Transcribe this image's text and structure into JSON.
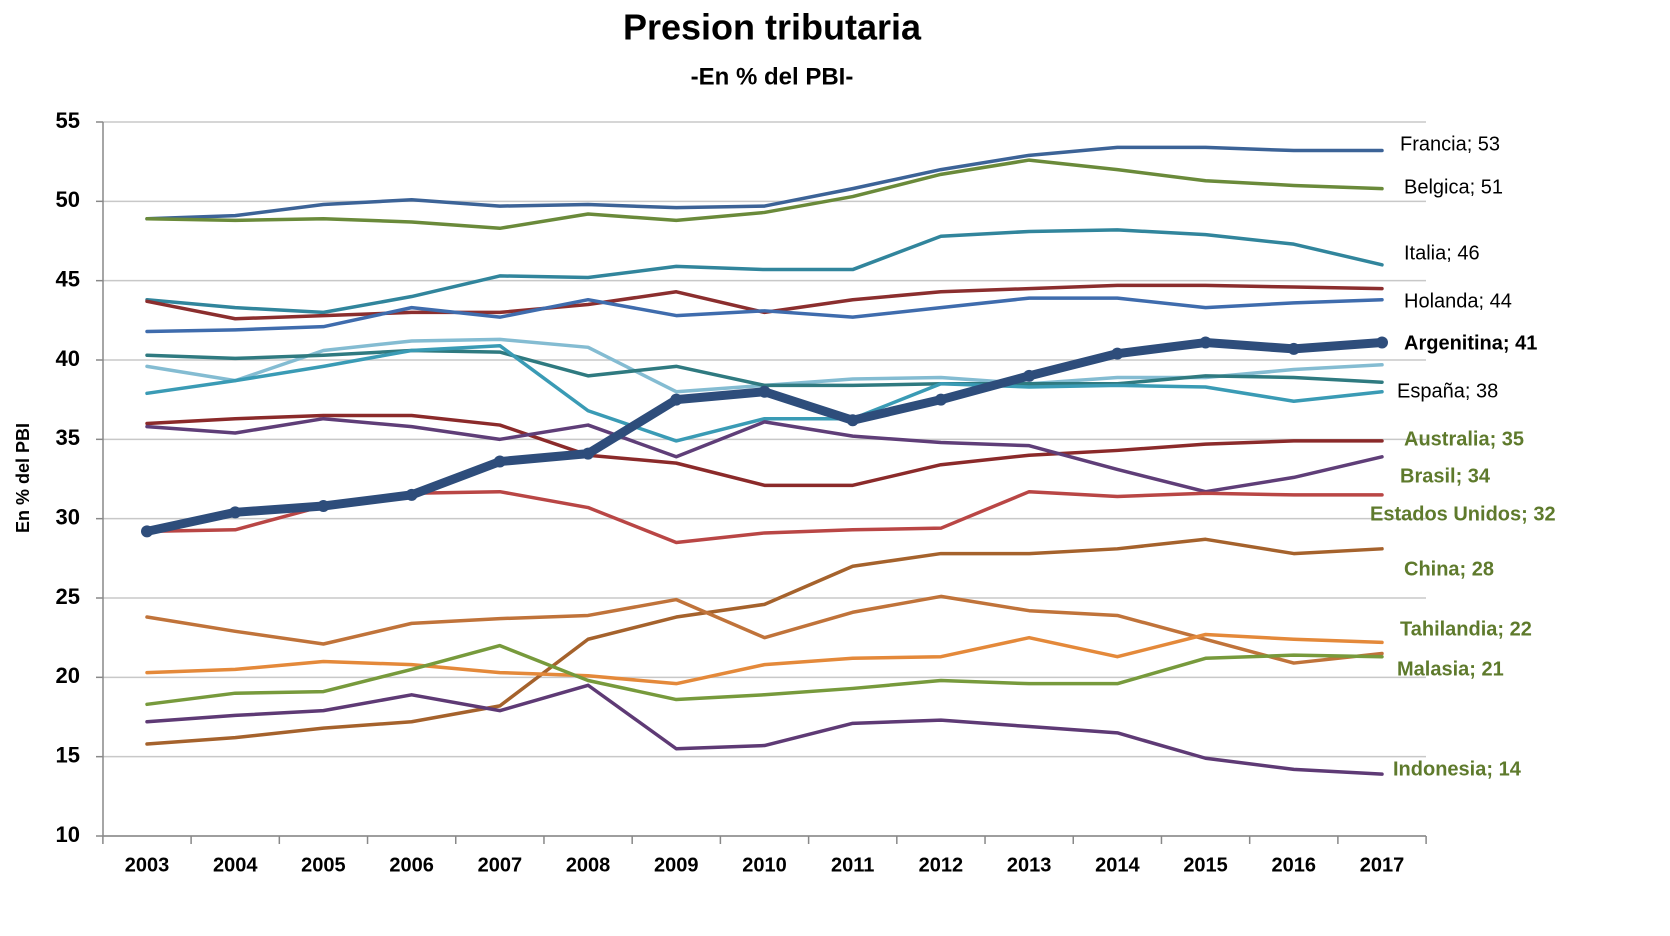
{
  "chart_data": {
    "type": "line",
    "title": "Presion tributaria",
    "subtitle": "-En % del PBI-",
    "y_label": "En % del PBI",
    "categories": [
      "2003",
      "2004",
      "2005",
      "2006",
      "2007",
      "2008",
      "2009",
      "2010",
      "2011",
      "2012",
      "2013",
      "2014",
      "2015",
      "2016",
      "2017"
    ],
    "ylim": [
      10,
      55
    ],
    "yticks": [
      10,
      15,
      20,
      25,
      30,
      35,
      40,
      45,
      50,
      55
    ],
    "grid": true,
    "series": [
      {
        "label": "Francia; 53",
        "color": "#3c6397",
        "label_color": "#000000",
        "values": [
          48.9,
          49.1,
          49.8,
          50.1,
          49.7,
          49.8,
          49.6,
          49.7,
          50.8,
          52.0,
          52.9,
          53.4,
          53.4,
          53.2,
          53.2
        ]
      },
      {
        "label": "Belgica; 51",
        "color": "#6a8a3a",
        "label_color": "#000000",
        "values": [
          48.9,
          48.8,
          48.9,
          48.7,
          48.3,
          49.2,
          48.8,
          49.3,
          50.3,
          51.7,
          52.6,
          52.0,
          51.3,
          51.0,
          50.8
        ]
      },
      {
        "label": "Italia; 46",
        "color": "#31859c",
        "label_color": "#000000",
        "values": [
          43.8,
          43.3,
          43.0,
          44.0,
          45.3,
          45.2,
          45.9,
          45.7,
          45.7,
          47.8,
          48.1,
          48.2,
          47.9,
          47.3,
          46.0
        ]
      },
      {
        "color": "#8b2e2e",
        "values": [
          43.7,
          42.6,
          42.8,
          43.0,
          43.0,
          43.5,
          44.3,
          43.0,
          43.8,
          44.3,
          44.5,
          44.7,
          44.7,
          44.6,
          44.5
        ]
      },
      {
        "label": "Holanda; 44",
        "color": "#3f6cad",
        "label_color": "#000000",
        "values": [
          41.8,
          41.9,
          42.1,
          43.3,
          42.7,
          43.8,
          42.8,
          43.1,
          42.7,
          43.3,
          43.9,
          43.9,
          43.3,
          43.6,
          43.8
        ]
      },
      {
        "label": "Argenitina; 41",
        "color": "#2e4d7b",
        "label_color": "#000000",
        "values": [
          29.2,
          30.4,
          30.8,
          31.5,
          33.6,
          34.1,
          37.5,
          38.0,
          36.2,
          37.5,
          39.0,
          40.4,
          41.1,
          40.7,
          41.1
        ]
      },
      {
        "color": "#84bcd2",
        "values": [
          39.6,
          38.7,
          40.6,
          41.2,
          41.3,
          40.8,
          38.0,
          38.4,
          38.8,
          38.9,
          38.5,
          38.9,
          38.9,
          39.4,
          39.7
        ]
      },
      {
        "color": "#2f7a80",
        "values": [
          40.3,
          40.1,
          40.3,
          40.6,
          40.5,
          39.0,
          39.6,
          38.4,
          38.4,
          38.5,
          38.5,
          38.5,
          39.0,
          38.9,
          38.6
        ]
      },
      {
        "label": "España; 38",
        "color": "#3a9bb5",
        "label_color": "#000000",
        "values": [
          37.9,
          38.7,
          39.6,
          40.6,
          40.9,
          36.8,
          34.9,
          36.3,
          36.3,
          38.5,
          38.3,
          38.4,
          38.3,
          37.4,
          38.0
        ]
      },
      {
        "label": "Australia; 35",
        "color": "#8b2a2a",
        "label_color": "#5e7a2c",
        "values": [
          36.0,
          36.3,
          36.5,
          36.5,
          35.9,
          34.0,
          33.5,
          32.1,
          32.1,
          33.4,
          34.0,
          34.3,
          34.7,
          34.9,
          34.9
        ]
      },
      {
        "label": "Brasil; 34",
        "color": "#5f3e78",
        "label_color": "#5e7a2c",
        "values": [
          35.8,
          35.4,
          36.3,
          35.8,
          35.0,
          35.9,
          33.9,
          36.1,
          35.2,
          34.8,
          34.6,
          33.1,
          31.7,
          32.6,
          33.9
        ]
      },
      {
        "label": "Estados Unidos; 32",
        "color": "#b94645",
        "label_color": "#5e7a2c",
        "values": [
          29.2,
          29.3,
          30.8,
          31.6,
          31.7,
          30.7,
          28.5,
          29.1,
          29.3,
          29.4,
          31.7,
          31.4,
          31.6,
          31.5,
          31.5
        ]
      },
      {
        "label": "China; 28",
        "color": "#a5622c",
        "label_color": "#5e7a2c",
        "values": [
          15.8,
          16.2,
          16.8,
          17.2,
          18.2,
          22.4,
          23.8,
          24.6,
          27.0,
          27.8,
          27.8,
          28.1,
          28.7,
          27.8,
          28.1
        ]
      },
      {
        "color": "#c0733a",
        "values": [
          23.8,
          22.9,
          22.1,
          23.4,
          23.7,
          23.9,
          24.9,
          22.5,
          24.1,
          25.1,
          24.2,
          23.9,
          22.4,
          20.9,
          21.5
        ]
      },
      {
        "label": "Tahilandia; 22",
        "color": "#e4893a",
        "label_color": "#5e7a2c",
        "values": [
          20.3,
          20.5,
          21.0,
          20.8,
          20.3,
          20.1,
          19.6,
          20.8,
          21.2,
          21.3,
          22.5,
          21.3,
          22.7,
          22.4,
          22.2
        ]
      },
      {
        "label": "Malasia; 21",
        "color": "#779a3c",
        "label_color": "#5e7a2c",
        "values": [
          18.3,
          19.0,
          19.1,
          20.5,
          22.0,
          19.8,
          18.6,
          18.9,
          19.3,
          19.8,
          19.6,
          19.6,
          21.2,
          21.4,
          21.3
        ]
      },
      {
        "label": "Indonesia; 14",
        "color": "#5e3a75",
        "label_color": "#5e7a2c",
        "values": [
          17.2,
          17.6,
          17.9,
          18.9,
          17.9,
          19.5,
          15.5,
          15.7,
          17.1,
          17.3,
          16.9,
          16.5,
          14.9,
          14.2,
          13.9
        ]
      }
    ]
  }
}
